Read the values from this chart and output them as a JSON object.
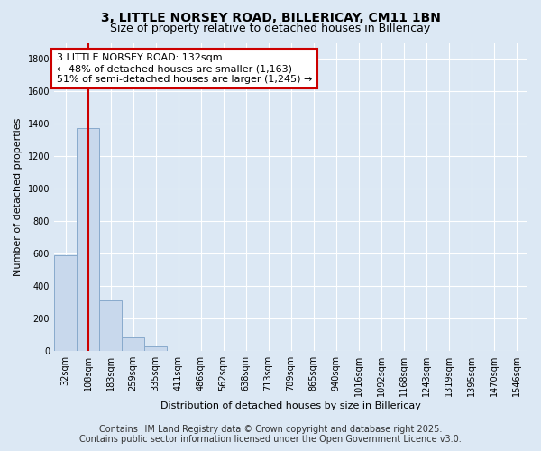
{
  "title_line1": "3, LITTLE NORSEY ROAD, BILLERICAY, CM11 1BN",
  "title_line2": "Size of property relative to detached houses in Billericay",
  "xlabel": "Distribution of detached houses by size in Billericay",
  "ylabel": "Number of detached properties",
  "categories": [
    "32sqm",
    "108sqm",
    "183sqm",
    "259sqm",
    "335sqm",
    "411sqm",
    "486sqm",
    "562sqm",
    "638sqm",
    "713sqm",
    "789sqm",
    "865sqm",
    "940sqm",
    "1016sqm",
    "1092sqm",
    "1168sqm",
    "1243sqm",
    "1319sqm",
    "1395sqm",
    "1470sqm",
    "1546sqm"
  ],
  "values": [
    590,
    1375,
    315,
    85,
    30,
    0,
    0,
    0,
    0,
    0,
    0,
    0,
    0,
    0,
    0,
    0,
    0,
    0,
    0,
    0,
    0
  ],
  "bar_color": "#c8d8ec",
  "bar_edge_color": "#88aacc",
  "vline_color": "#cc0000",
  "annotation_line1": "3 LITTLE NORSEY ROAD: 132sqm",
  "annotation_line2": "← 48% of detached houses are smaller (1,163)",
  "annotation_line3": "51% of semi-detached houses are larger (1,245) →",
  "annotation_box_color": "#ffffff",
  "annotation_box_edge": "#cc0000",
  "ylim": [
    0,
    1900
  ],
  "yticks": [
    0,
    200,
    400,
    600,
    800,
    1000,
    1200,
    1400,
    1600,
    1800
  ],
  "background_color": "#dce8f4",
  "plot_background": "#dce8f4",
  "footer_line1": "Contains HM Land Registry data © Crown copyright and database right 2025.",
  "footer_line2": "Contains public sector information licensed under the Open Government Licence v3.0.",
  "title_fontsize": 10,
  "subtitle_fontsize": 9,
  "axis_label_fontsize": 8,
  "tick_fontsize": 7,
  "annotation_fontsize": 8,
  "footer_fontsize": 7
}
